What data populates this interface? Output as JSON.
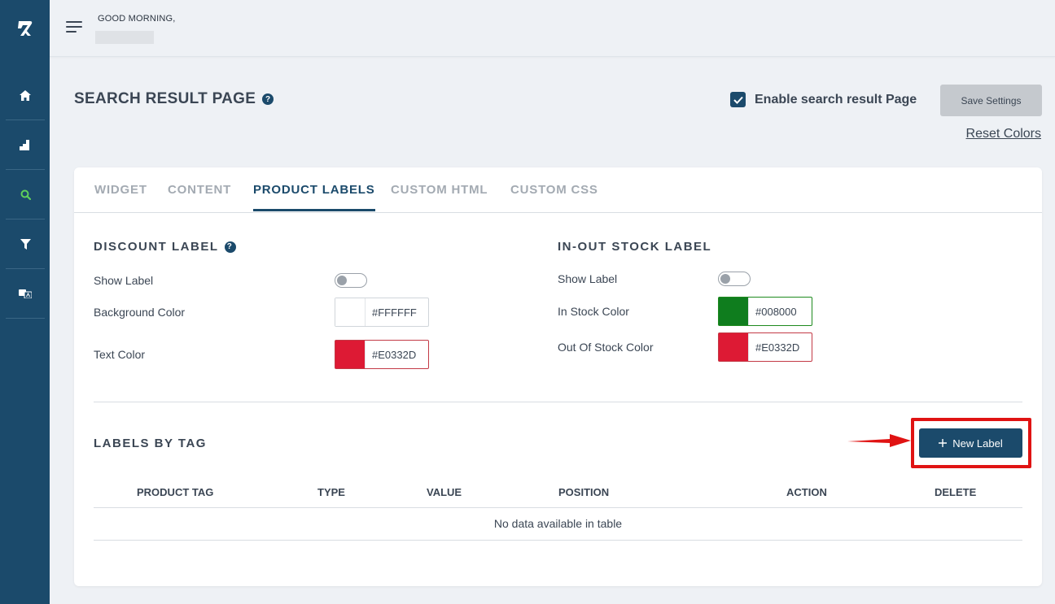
{
  "sidebar": {
    "logo_icon": "brand-logo-icon",
    "items": [
      {
        "icon": "home-icon",
        "active": false
      },
      {
        "icon": "chart-icon",
        "active": false
      },
      {
        "icon": "search-icon",
        "active": true
      },
      {
        "icon": "filter-icon",
        "active": false
      },
      {
        "icon": "translate-icon",
        "active": false
      }
    ]
  },
  "header": {
    "greeting": "GOOD MORNING,"
  },
  "page": {
    "title": "SEARCH RESULT PAGE",
    "help_mark": "?",
    "enable_label": "Enable search result Page",
    "enable_checked": true,
    "save_label": "Save Settings",
    "reset_label": "Reset Colors"
  },
  "tabs": [
    {
      "label": "WIDGET",
      "active": false
    },
    {
      "label": "CONTENT",
      "active": false
    },
    {
      "label": "PRODUCT LABELS",
      "active": true
    },
    {
      "label": "CUSTOM HTML",
      "active": false
    },
    {
      "label": "CUSTOM CSS",
      "active": false
    }
  ],
  "discount": {
    "title": "DISCOUNT LABEL",
    "show_label": "Show Label",
    "show_enabled": false,
    "bg_label": "Background Color",
    "bg_color": "#FFFFFF",
    "text_label": "Text Color",
    "text_color": "#E0332D"
  },
  "stock": {
    "title": "IN-OUT STOCK LABEL",
    "show_label": "Show Label",
    "show_enabled": false,
    "in_label": "In Stock Color",
    "in_color": "#008000",
    "out_label": "Out Of Stock Color",
    "out_color": "#E0332D"
  },
  "labels_by_tag": {
    "title": "LABELS BY TAG",
    "new_button": "New Label",
    "new_button_icon": "plus-icon",
    "columns": [
      "PRODUCT TAG",
      "TYPE",
      "VALUE",
      "POSITION",
      "ACTION",
      "DELETE"
    ],
    "empty_text": "No data available in table"
  },
  "colors": {
    "primary": "#1b4a6b",
    "highlight": "#e01313"
  }
}
